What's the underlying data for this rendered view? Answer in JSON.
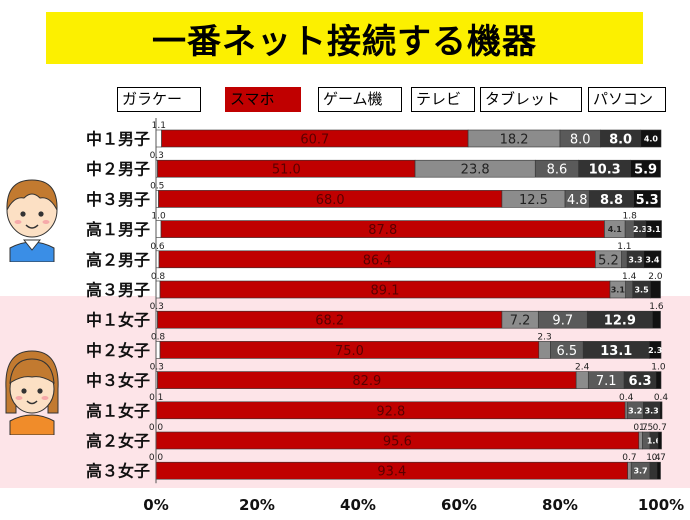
{
  "title": "一番ネット接続する機器",
  "colors": {
    "スマホ": "#c00000",
    "ゲーム機": "#8c8c8c",
    "テレビ": "#5a5a5a",
    "タブレット": "#333333",
    "パソコン": "#111111",
    "highlight": "#fcf000",
    "girls_background": "#fde4e8"
  },
  "chart_data": {
    "type": "bar",
    "stacked": true,
    "orientation": "horizontal",
    "title": "一番ネット接続する機器",
    "categories": [
      "中１男子",
      "中２男子",
      "中３男子",
      "高１男子",
      "高２男子",
      "高３男子",
      "中１女子",
      "中２女子",
      "中３女子",
      "高１女子",
      "高２女子",
      "高３女子"
    ],
    "series": [
      {
        "name": "ガラケー",
        "color": "#ffffff",
        "values": [
          1.1,
          0.3,
          0.5,
          1.0,
          0.6,
          0.8,
          0.3,
          0.8,
          0.3,
          0.1,
          0.0,
          0.0
        ]
      },
      {
        "name": "スマホ",
        "color": "#c00000",
        "values": [
          60.7,
          51.0,
          68.0,
          87.8,
          86.4,
          89.1,
          68.2,
          75.0,
          82.9,
          92.8,
          95.6,
          93.4
        ]
      },
      {
        "name": "ゲーム機",
        "color": "#8c8c8c",
        "values": [
          18.2,
          23.8,
          12.5,
          4.1,
          5.2,
          3.1,
          7.2,
          2.3,
          2.4,
          0.4,
          0.7,
          0.7
        ]
      },
      {
        "name": "テレビ",
        "color": "#5a5a5a",
        "values": [
          8.0,
          8.6,
          4.8,
          1.8,
          1.1,
          1.4,
          9.7,
          6.5,
          7.1,
          3.2,
          1.5,
          3.7
        ]
      },
      {
        "name": "タブレット",
        "color": "#333333",
        "values": [
          8.0,
          10.3,
          8.8,
          2.3,
          3.3,
          3.5,
          12.9,
          13.1,
          6.3,
          3.3,
          1.6,
          1.4
        ]
      },
      {
        "name": "パソコン",
        "color": "#111111",
        "values": [
          4.0,
          5.9,
          5.3,
          3.1,
          3.4,
          2.0,
          1.6,
          2.3,
          1.0,
          0.4,
          0.7,
          0.7
        ]
      }
    ],
    "value_labels": [
      [
        {
          "t": "1.1",
          "p": "above"
        },
        {
          "t": "60.7",
          "p": "in"
        },
        {
          "t": "18.2",
          "p": "in"
        },
        {
          "t": "8.0",
          "p": "in"
        },
        {
          "t": "8.0",
          "p": "in"
        },
        {
          "t": "4.0",
          "p": "in"
        }
      ],
      [
        {
          "t": "0.3",
          "p": "above"
        },
        {
          "t": "51.0",
          "p": "in"
        },
        {
          "t": "23.8",
          "p": "in"
        },
        {
          "t": "8.6",
          "p": "in"
        },
        {
          "t": "10.3",
          "p": "in"
        },
        {
          "t": "5.9",
          "p": "in"
        }
      ],
      [
        {
          "t": "0.5",
          "p": "above"
        },
        {
          "t": "68.0",
          "p": "in"
        },
        {
          "t": "12.5",
          "p": "in"
        },
        {
          "t": "4.8",
          "p": "in"
        },
        {
          "t": "8.8",
          "p": "in"
        },
        {
          "t": "5.3",
          "p": "in"
        }
      ],
      [
        {
          "t": "1.0",
          "p": "above"
        },
        {
          "t": "87.8",
          "p": "in"
        },
        {
          "t": "4.1",
          "p": "in"
        },
        {
          "t": "1.8",
          "p": "above"
        },
        {
          "t": "2.3",
          "p": "in"
        },
        {
          "t": "3.1",
          "p": "in"
        }
      ],
      [
        {
          "t": "0.6",
          "p": "above"
        },
        {
          "t": "86.4",
          "p": "in"
        },
        {
          "t": "5.2",
          "p": "in"
        },
        {
          "t": "1.1",
          "p": "above"
        },
        {
          "t": "3.3",
          "p": "in"
        },
        {
          "t": "3.4",
          "p": "in"
        }
      ],
      [
        {
          "t": "0.8",
          "p": "above"
        },
        {
          "t": "89.1",
          "p": "in"
        },
        {
          "t": "3.1",
          "p": "in"
        },
        {
          "t": "1.4",
          "p": "above"
        },
        {
          "t": "3.5",
          "p": "in"
        },
        {
          "t": "2.0",
          "p": "above"
        }
      ],
      [
        {
          "t": "0.3",
          "p": "above"
        },
        {
          "t": "68.2",
          "p": "in"
        },
        {
          "t": "7.2",
          "p": "in"
        },
        {
          "t": "9.7",
          "p": "in"
        },
        {
          "t": "12.9",
          "p": "in"
        },
        {
          "t": "1.6",
          "p": "above"
        }
      ],
      [
        {
          "t": "0.8",
          "p": "above"
        },
        {
          "t": "75.0",
          "p": "in"
        },
        {
          "t": "2.3",
          "p": "above"
        },
        {
          "t": "6.5",
          "p": "in"
        },
        {
          "t": "13.1",
          "p": "in"
        },
        {
          "t": "2.3",
          "p": "in"
        }
      ],
      [
        {
          "t": "0.3",
          "p": "above"
        },
        {
          "t": "82.9",
          "p": "in"
        },
        {
          "t": "2.4",
          "p": "above"
        },
        {
          "t": "7.1",
          "p": "in"
        },
        {
          "t": "6.3",
          "p": "in"
        },
        {
          "t": "1.0",
          "p": "above"
        }
      ],
      [
        {
          "t": "0.1",
          "p": "above"
        },
        {
          "t": "92.8",
          "p": "in"
        },
        {
          "t": "0.4",
          "p": "above"
        },
        {
          "t": "3.2",
          "p": "in"
        },
        {
          "t": "3.3",
          "p": "in"
        },
        {
          "t": "0.4",
          "p": "above"
        }
      ],
      [
        {
          "t": "0.0",
          "p": "above"
        },
        {
          "t": "95.6",
          "p": "in"
        },
        {
          "t": "0.7",
          "p": "above"
        },
        {
          "t": "1.5",
          "p": "above"
        },
        {
          "t": "1.6",
          "p": "in"
        },
        {
          "t": "0.7",
          "p": "above"
        }
      ],
      [
        {
          "t": "0.0",
          "p": "above"
        },
        {
          "t": "93.4",
          "p": "in"
        },
        {
          "t": "0.7",
          "p": "above"
        },
        {
          "t": "3.7",
          "p": "in"
        },
        {
          "t": "1.4",
          "p": "above"
        },
        {
          "t": "0.7",
          "p": "above"
        }
      ]
    ],
    "x_ticks": [
      "0%",
      "20%",
      "40%",
      "60%",
      "80%",
      "100%"
    ],
    "xlim": [
      0,
      100
    ],
    "legend": [
      "ガラケー",
      "スマホ",
      "ゲーム機",
      "テレビ",
      "タブレット",
      "パソコン"
    ],
    "legend_position": "top",
    "grid": false
  }
}
